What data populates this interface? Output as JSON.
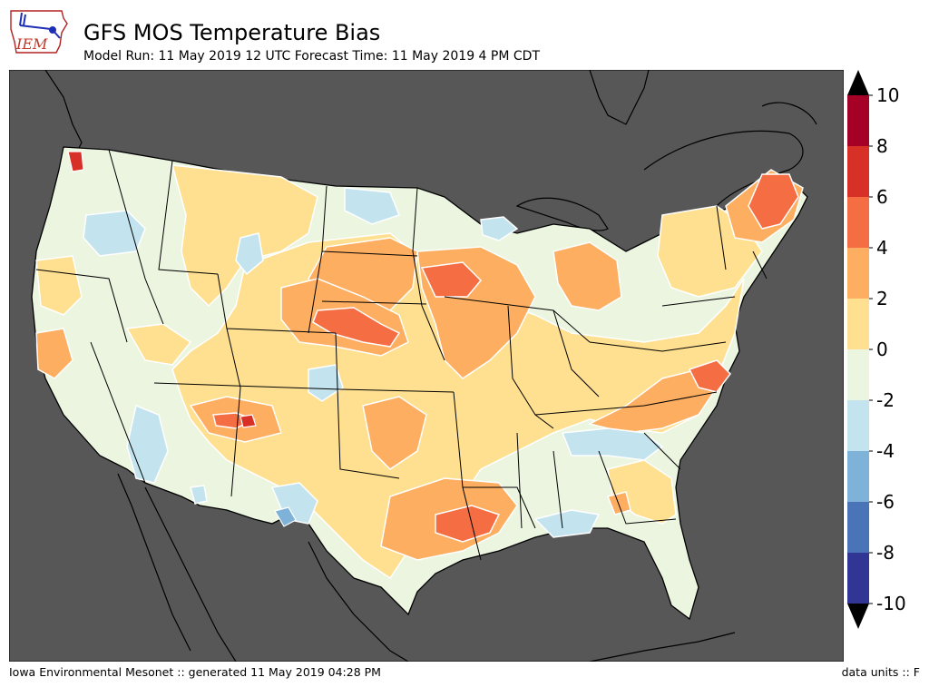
{
  "header": {
    "logo_text": "IEM",
    "title": "GFS MOS Temperature Bias",
    "subtitle": "Model Run: 11 May 2019 12 UTC Forecast Time: 11 May 2019 4 PM CDT"
  },
  "colorbar": {
    "ticks": [
      "10",
      "8",
      "6",
      "4",
      "2",
      "0",
      "-2",
      "-4",
      "-6",
      "-8",
      "-10"
    ],
    "bins": [
      {
        "from": 8,
        "to": 10,
        "color": "#a50026"
      },
      {
        "from": 6,
        "to": 8,
        "color": "#d73027"
      },
      {
        "from": 4,
        "to": 6,
        "color": "#f46d43"
      },
      {
        "from": 2,
        "to": 4,
        "color": "#fdae61"
      },
      {
        "from": 0,
        "to": 2,
        "color": "#fee090"
      },
      {
        "from": -2,
        "to": 0,
        "color": "#ebf5e0"
      },
      {
        "from": -4,
        "to": -2,
        "color": "#c3e4ef"
      },
      {
        "from": -6,
        "to": -4,
        "color": "#7fb2d8"
      },
      {
        "from": -8,
        "to": -6,
        "color": "#4a74b8"
      },
      {
        "from": -10,
        "to": -8,
        "color": "#313695"
      }
    ],
    "extend_high_color": "#000000",
    "extend_low_color": "#000000"
  },
  "map": {
    "background_color": "#575757",
    "land_color": "#ebf5e0"
  },
  "footer": {
    "left": "Iowa Environmental Mesonet :: generated 11 May 2019 04:28 PM",
    "right": "data units :: F"
  }
}
